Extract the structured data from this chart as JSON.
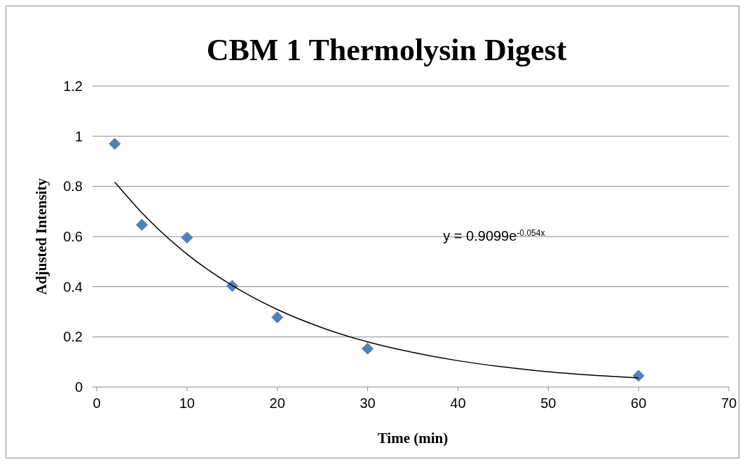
{
  "chart_data": {
    "type": "scatter",
    "title": "CBM 1 Thermolysin Digest",
    "xlabel": "Time (min)",
    "ylabel": "Adjusted Intensity",
    "xlim": [
      0,
      70
    ],
    "xticks": [
      0,
      10,
      20,
      30,
      40,
      50,
      60,
      70
    ],
    "ylim": [
      0,
      1.2
    ],
    "yticks": [
      0,
      {
        "value": 0.2,
        "label": "0.2"
      },
      {
        "value": 0.4,
        "label": "0.4"
      },
      {
        "value": 0.6,
        "label": "0.6"
      },
      {
        "value": 0.8,
        "label": "0.8"
      },
      1,
      {
        "value": 1.2,
        "label": "1.2"
      }
    ],
    "grid": "y",
    "marker": "diamond",
    "series": [
      {
        "color": "#4f81bd",
        "x": [
          2,
          5,
          10,
          15,
          20,
          30,
          60
        ],
        "values": [
          0.97,
          0.647,
          0.596,
          0.403,
          0.278,
          0.153,
          0.045
        ]
      },
      {
        "type": "line",
        "color": "#000000",
        "marker": "none",
        "x": [
          2,
          5,
          10,
          15,
          20,
          25,
          30,
          35,
          40,
          45,
          50,
          55,
          60
        ],
        "values": [
          0.817,
          0.695,
          0.53,
          0.405,
          0.309,
          0.236,
          0.18,
          0.138,
          0.105,
          0.08,
          0.061,
          0.047,
          0.036
        ]
      }
    ],
    "annotations": [
      "y = 0.9099e$^{-0.054x}$"
    ]
  }
}
